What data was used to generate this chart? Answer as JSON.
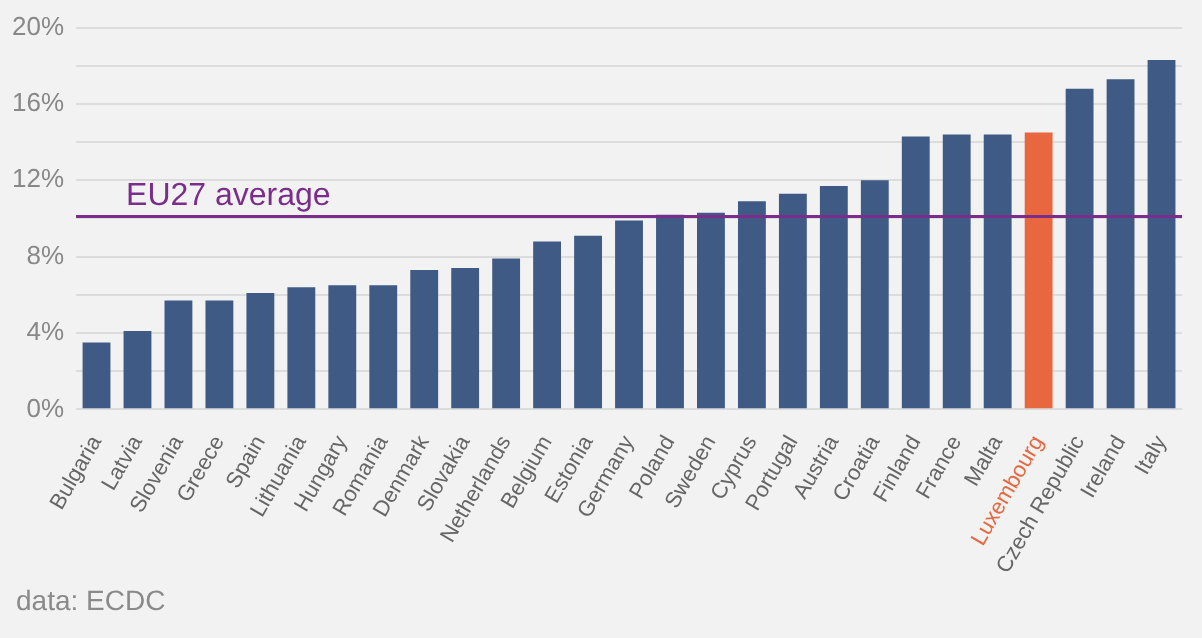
{
  "chart_data": {
    "type": "bar",
    "categories": [
      "Bulgaria",
      "Latvia",
      "Slovenia",
      "Greece",
      "Spain",
      "Lithuania",
      "Hungary",
      "Romania",
      "Denmark",
      "Slovakia",
      "Netherlands",
      "Belgium",
      "Estonia",
      "Germany",
      "Poland",
      "Sweden",
      "Cyprus",
      "Portugal",
      "Austria",
      "Croatia",
      "Finland",
      "France",
      "Malta",
      "Luxembourg",
      "Czech Republic",
      "Ireland",
      "Italy"
    ],
    "values": [
      3.5,
      4.1,
      5.7,
      5.7,
      6.1,
      6.4,
      6.5,
      6.5,
      7.3,
      7.4,
      7.9,
      8.8,
      9.1,
      9.9,
      10.2,
      10.3,
      10.9,
      11.3,
      11.7,
      12.0,
      14.3,
      14.4,
      14.4,
      14.5,
      16.8,
      17.3,
      18.3
    ],
    "colors": [
      "#3e5a85",
      "#3e5a85",
      "#3e5a85",
      "#3e5a85",
      "#3e5a85",
      "#3e5a85",
      "#3e5a85",
      "#3e5a85",
      "#3e5a85",
      "#3e5a85",
      "#3e5a85",
      "#3e5a85",
      "#3e5a85",
      "#3e5a85",
      "#3e5a85",
      "#3e5a85",
      "#3e5a85",
      "#3e5a85",
      "#3e5a85",
      "#3e5a85",
      "#3e5a85",
      "#3e5a85",
      "#3e5a85",
      "#e8673e",
      "#3e5a85",
      "#3e5a85",
      "#3e5a85"
    ],
    "ylim": [
      0,
      20
    ],
    "yticks": [
      {
        "value": 0,
        "label": "0%"
      },
      {
        "value": 2,
        "label": null
      },
      {
        "value": 4,
        "label": "4%"
      },
      {
        "value": 6,
        "label": null
      },
      {
        "value": 8,
        "label": "8%"
      },
      {
        "value": 10,
        "label": null
      },
      {
        "value": 12,
        "label": "12%"
      },
      {
        "value": 14,
        "label": null
      },
      {
        "value": 16,
        "label": "16%"
      },
      {
        "value": 18,
        "label": null
      },
      {
        "value": 20,
        "label": "20%"
      }
    ],
    "grid": "y",
    "ref_lines": [
      {
        "axis": "y",
        "value": 10.1,
        "label": "EU27 average",
        "color": "#7b2d8b"
      }
    ],
    "annotations": [
      "data: ECDC"
    ]
  }
}
